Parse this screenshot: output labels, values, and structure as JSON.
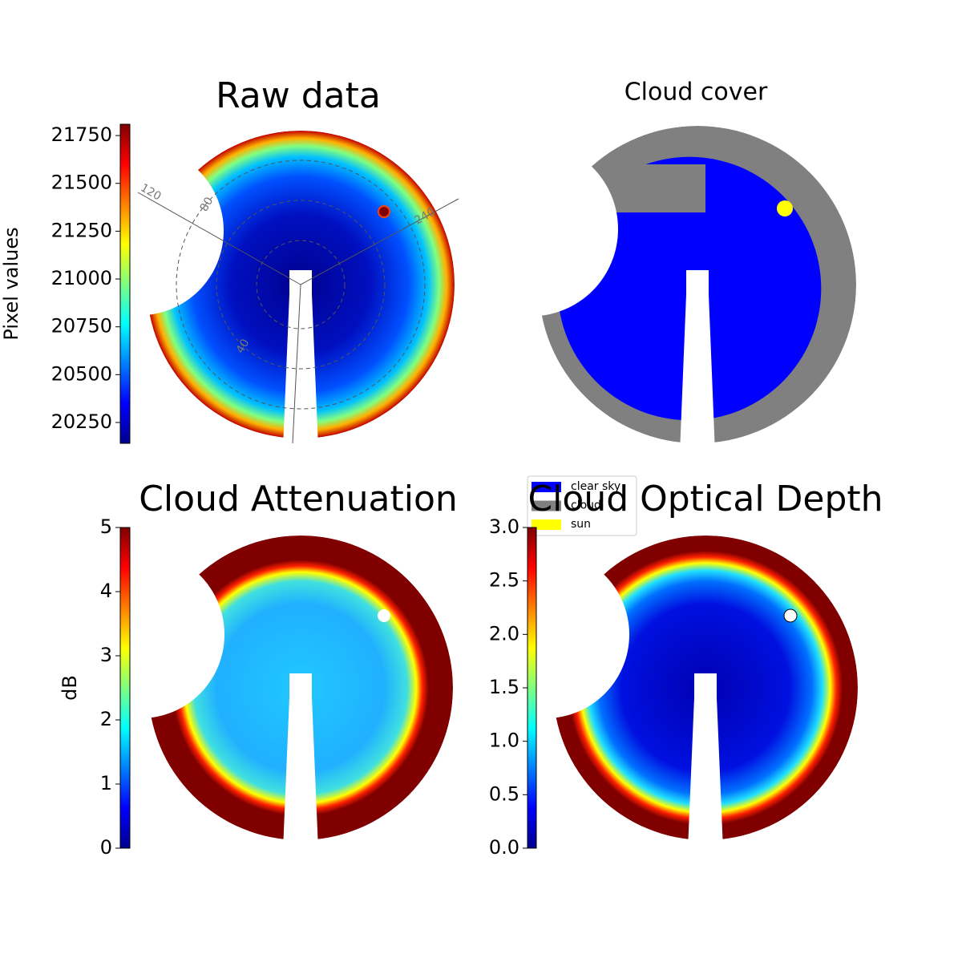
{
  "chart_data": [
    {
      "type": "image",
      "title": "Raw data",
      "colorbar_label": "Pixel values",
      "colormap": "jet",
      "ylim": [
        20141,
        21809
      ],
      "yticks": [
        20250,
        20500,
        20750,
        21000,
        21250,
        21500,
        21750
      ],
      "annotations": [
        "120",
        "80",
        "240",
        "40"
      ]
    },
    {
      "type": "mask",
      "title": "Cloud cover",
      "series": [
        {
          "name": "clear sky",
          "color": "#0000ff"
        },
        {
          "name": "cloud",
          "color": "#808080"
        },
        {
          "name": "sun",
          "color": "#ffff00"
        }
      ]
    },
    {
      "type": "image",
      "title": "Cloud Attenuation",
      "colorbar_label": "dB",
      "colormap": "jet",
      "ylim": [
        0,
        5
      ],
      "yticks": [
        0,
        1,
        2,
        3,
        4,
        5
      ]
    },
    {
      "type": "image",
      "title": "Cloud Optical Depth",
      "colormap": "jet",
      "ylim": [
        0,
        3
      ],
      "yticks": [
        {
          "value": 0,
          "label": "0.0"
        },
        {
          "value": 0.5,
          "label": "0.5"
        },
        {
          "value": 1,
          "label": "1.0"
        },
        {
          "value": 1.5,
          "label": "1.5"
        },
        {
          "value": 2,
          "label": "2.0"
        },
        {
          "value": 2.5,
          "label": "2.5"
        },
        {
          "value": 3,
          "label": "3.0"
        }
      ]
    }
  ]
}
